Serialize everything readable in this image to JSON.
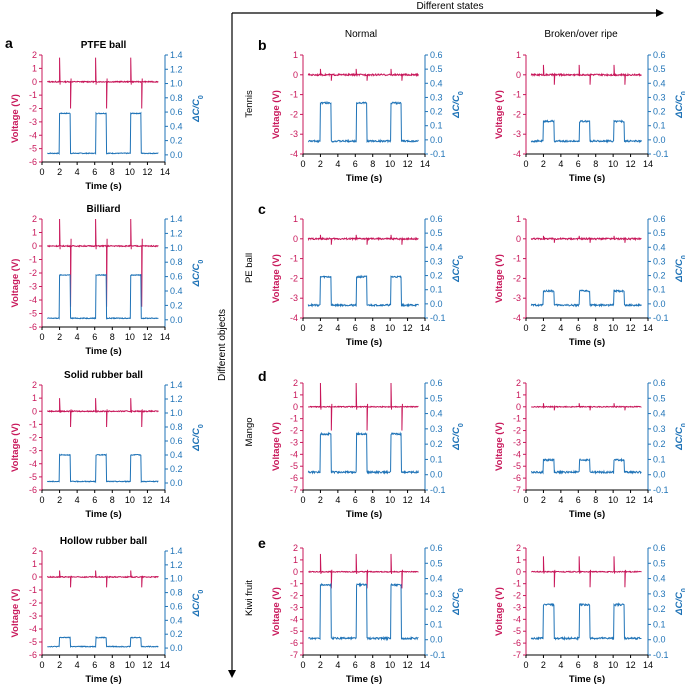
{
  "figure": {
    "header_label": "Different states",
    "side_label": "Different objects",
    "columns": [
      "Normal",
      "Broken/over ripe"
    ],
    "rows": [
      "Tennis",
      "PE ball",
      "Mango",
      "Kiwi fruit"
    ]
  },
  "colors": {
    "voltage": "#c8175a",
    "capacitance": "#1f73b7",
    "axis": "#000000"
  },
  "chart_data": [
    {
      "id": "a1",
      "panel": "a",
      "title": "PTFE ball",
      "type": "line",
      "xlabel": "Time (s)",
      "ylabel_left": "Voltage (V)",
      "ylabel_right": "ΔC/C0",
      "xlim": [
        0,
        14
      ],
      "xticks": [
        "0",
        "2",
        "4",
        "6",
        "8",
        "10",
        "12",
        "14"
      ],
      "ylim_left": [
        -6,
        2
      ],
      "yticks_left": [
        "2",
        "1",
        "0",
        "-1",
        "-2",
        "-3",
        "-4",
        "-5",
        "-6"
      ],
      "ylim_right": [
        -0.1,
        1.4
      ],
      "yticks_right": [
        "1.4",
        "1.2",
        "1.0",
        "0.8",
        "0.6",
        "0.4",
        "0.2",
        "0.0"
      ],
      "series": [
        {
          "name": "Voltage",
          "axis": "left",
          "pulses": [
            2.0,
            6.1,
            10.1
          ],
          "pos_peak": 1.8,
          "neg_peak": -2.0
        },
        {
          "name": "ΔC/C0",
          "axis": "right",
          "pulses": [
            2.0,
            6.1,
            10.1
          ],
          "width": 1.2,
          "baseline": 0.0,
          "high": 0.56
        }
      ]
    },
    {
      "id": "a2",
      "panel": "",
      "title": "Billiard",
      "type": "line",
      "xlabel": "Time (s)",
      "ylabel_left": "Voltage (V)",
      "ylabel_right": "ΔC/C0",
      "xlim": [
        0,
        14
      ],
      "xticks": [
        "0",
        "2",
        "4",
        "6",
        "8",
        "10",
        "12",
        "14"
      ],
      "ylim_left": [
        -6,
        2
      ],
      "yticks_left": [
        "2",
        "1",
        "0",
        "-1",
        "-2",
        "-3",
        "-4",
        "-5",
        "-6"
      ],
      "ylim_right": [
        -0.1,
        1.4
      ],
      "yticks_right": [
        "1.4",
        "1.2",
        "1.0",
        "0.8",
        "0.6",
        "0.4",
        "0.2",
        "0.0"
      ],
      "series": [
        {
          "name": "Voltage",
          "axis": "left",
          "pulses": [
            2.0,
            6.1,
            10.1
          ],
          "pos_peak": 2.0,
          "neg_peak": -4.5
        },
        {
          "name": "ΔC/C0",
          "axis": "right",
          "pulses": [
            2.0,
            6.1,
            10.1
          ],
          "width": 1.2,
          "baseline": 0.0,
          "high": 0.6
        }
      ]
    },
    {
      "id": "a3",
      "panel": "",
      "title": "Solid rubber ball",
      "type": "line",
      "xlabel": "Time (s)",
      "ylabel_left": "Voltage (V)",
      "ylabel_right": "ΔC/C0",
      "xlim": [
        0,
        14
      ],
      "xticks": [
        "0",
        "2",
        "4",
        "6",
        "8",
        "10",
        "12",
        "14"
      ],
      "ylim_left": [
        -6,
        2
      ],
      "yticks_left": [
        "2",
        "1",
        "0",
        "-1",
        "-2",
        "-3",
        "-4",
        "-5",
        "-6"
      ],
      "ylim_right": [
        -0.1,
        1.4
      ],
      "yticks_right": [
        "1.4",
        "1.2",
        "1.0",
        "0.8",
        "0.6",
        "0.4",
        "0.2",
        "0.0"
      ],
      "series": [
        {
          "name": "Voltage",
          "axis": "left",
          "pulses": [
            2.0,
            6.1,
            10.1
          ],
          "pos_peak": 1.0,
          "neg_peak": -1.2
        },
        {
          "name": "ΔC/C0",
          "axis": "right",
          "pulses": [
            2.0,
            6.1,
            10.1
          ],
          "width": 1.2,
          "baseline": 0.0,
          "high": 0.38
        }
      ]
    },
    {
      "id": "a4",
      "panel": "",
      "title": "Hollow rubber ball",
      "type": "line",
      "xlabel": "Time (s)",
      "ylabel_left": "Voltage (V)",
      "ylabel_right": "ΔC/C0",
      "xlim": [
        0,
        14
      ],
      "xticks": [
        "0",
        "2",
        "4",
        "6",
        "8",
        "10",
        "12",
        "14"
      ],
      "ylim_left": [
        -6,
        2
      ],
      "yticks_left": [
        "2",
        "1",
        "0",
        "-1",
        "-2",
        "-3",
        "-4",
        "-5",
        "-6"
      ],
      "ylim_right": [
        -0.1,
        1.4
      ],
      "yticks_right": [
        "1.4",
        "1.2",
        "1.0",
        "0.8",
        "0.6",
        "0.4",
        "0.2",
        "0.0"
      ],
      "series": [
        {
          "name": "Voltage",
          "axis": "left",
          "pulses": [
            2.0,
            6.1,
            10.1
          ],
          "pos_peak": 0.5,
          "neg_peak": -0.8
        },
        {
          "name": "ΔC/C0",
          "axis": "right",
          "pulses": [
            2.0,
            6.1,
            10.1
          ],
          "width": 1.2,
          "baseline": 0.0,
          "high": 0.13
        }
      ]
    },
    {
      "id": "b1",
      "panel": "b",
      "title": "",
      "type": "line",
      "xlabel": "Time (s)",
      "ylabel_left": "Voltage (V)",
      "ylabel_right": "ΔC/C0",
      "xlim": [
        0,
        14
      ],
      "xticks": [
        "0",
        "2",
        "4",
        "6",
        "8",
        "10",
        "12",
        "14"
      ],
      "ylim_left": [
        -4,
        1
      ],
      "yticks_left": [
        "1",
        "0",
        "-1",
        "-2",
        "-3",
        "-4"
      ],
      "ylim_right": [
        -0.1,
        0.6
      ],
      "yticks_right": [
        "0.6",
        "0.5",
        "0.4",
        "0.3",
        "0.2",
        "0.1",
        "0.0",
        "-0.1"
      ],
      "series": [
        {
          "name": "Voltage",
          "axis": "left",
          "pulses": [
            2.0,
            6.1,
            10.1
          ],
          "pos_peak": 0.3,
          "neg_peak": -0.3
        },
        {
          "name": "ΔC/C0",
          "axis": "right",
          "pulses": [
            2.0,
            6.1,
            10.1
          ],
          "width": 1.2,
          "baseline": 0.0,
          "high": 0.27
        }
      ]
    },
    {
      "id": "b2",
      "panel": "",
      "title": "",
      "type": "line",
      "xlabel": "Time (s)",
      "ylabel_left": "Voltage (V)",
      "ylabel_right": "ΔC/C0",
      "xlim": [
        0,
        14
      ],
      "xticks": [
        "0",
        "2",
        "4",
        "6",
        "8",
        "10",
        "12",
        "14"
      ],
      "ylim_left": [
        -4,
        1
      ],
      "yticks_left": [
        "1",
        "0",
        "-1",
        "-2",
        "-3",
        "-4"
      ],
      "ylim_right": [
        -0.1,
        0.6
      ],
      "yticks_right": [
        "0.6",
        "0.5",
        "0.4",
        "0.3",
        "0.2",
        "0.1",
        "0.0",
        "-0.1"
      ],
      "series": [
        {
          "name": "Voltage",
          "axis": "left",
          "pulses": [
            2.0,
            6.1,
            10.1
          ],
          "pos_peak": 0.5,
          "neg_peak": -0.5
        },
        {
          "name": "ΔC/C0",
          "axis": "right",
          "pulses": [
            2.0,
            6.1,
            10.1
          ],
          "width": 1.2,
          "baseline": 0.0,
          "high": 0.14
        }
      ]
    },
    {
      "id": "c1",
      "panel": "c",
      "title": "",
      "type": "line",
      "xlabel": "Time (s)",
      "ylabel_left": "Voltage (V)",
      "ylabel_right": "ΔC/C0",
      "xlim": [
        0,
        14
      ],
      "xticks": [
        "0",
        "2",
        "4",
        "6",
        "8",
        "10",
        "12",
        "14"
      ],
      "ylim_left": [
        -4,
        1
      ],
      "yticks_left": [
        "1",
        "0",
        "-1",
        "-2",
        "-3",
        "-4"
      ],
      "ylim_right": [
        -0.1,
        0.6
      ],
      "yticks_right": [
        "0.6",
        "0.5",
        "0.4",
        "0.3",
        "0.2",
        "0.1",
        "0.0",
        "-0.1"
      ],
      "series": [
        {
          "name": "Voltage",
          "axis": "left",
          "pulses": [
            2.0,
            6.1,
            10.1
          ],
          "pos_peak": 0.2,
          "neg_peak": -0.3
        },
        {
          "name": "ΔC/C0",
          "axis": "right",
          "pulses": [
            2.0,
            6.1,
            10.1
          ],
          "width": 1.2,
          "baseline": 0.0,
          "high": 0.2
        }
      ]
    },
    {
      "id": "c2",
      "panel": "",
      "title": "",
      "type": "line",
      "xlabel": "Time (s)",
      "ylabel_left": "Voltage (V)",
      "ylabel_right": "ΔC/C0",
      "xlim": [
        0,
        14
      ],
      "xticks": [
        "0",
        "2",
        "4",
        "6",
        "8",
        "10",
        "12",
        "14"
      ],
      "ylim_left": [
        -4,
        1
      ],
      "yticks_left": [
        "1",
        "0",
        "-1",
        "-2",
        "-3",
        "-4"
      ],
      "ylim_right": [
        -0.1,
        0.6
      ],
      "yticks_right": [
        "0.6",
        "0.5",
        "0.4",
        "0.3",
        "0.2",
        "0.1",
        "0.0",
        "-0.1"
      ],
      "series": [
        {
          "name": "Voltage",
          "axis": "left",
          "pulses": [
            2.0,
            6.1,
            10.1
          ],
          "pos_peak": 0.15,
          "neg_peak": -0.2
        },
        {
          "name": "ΔC/C0",
          "axis": "right",
          "pulses": [
            2.0,
            6.1,
            10.1
          ],
          "width": 1.2,
          "baseline": 0.0,
          "high": 0.1
        }
      ]
    },
    {
      "id": "d1",
      "panel": "d",
      "title": "",
      "type": "line",
      "xlabel": "Time (s)",
      "ylabel_left": "Voltage (V)",
      "ylabel_right": "ΔC/C0",
      "xlim": [
        0,
        14
      ],
      "xticks": [
        "0",
        "2",
        "4",
        "6",
        "8",
        "10",
        "12",
        "14"
      ],
      "ylim_left": [
        -7,
        2
      ],
      "yticks_left": [
        "2",
        "1",
        "0",
        "-1",
        "-2",
        "-3",
        "-4",
        "-5",
        "-6",
        "-7"
      ],
      "ylim_right": [
        -0.1,
        0.6
      ],
      "yticks_right": [
        "0.6",
        "0.5",
        "0.4",
        "0.3",
        "0.2",
        "0.1",
        "0.0",
        "-0.1"
      ],
      "series": [
        {
          "name": "Voltage",
          "axis": "left",
          "pulses": [
            2.0,
            6.1,
            10.1
          ],
          "pos_peak": 2.0,
          "neg_peak": -2.0
        },
        {
          "name": "ΔC/C0",
          "axis": "right",
          "pulses": [
            2.0,
            6.1,
            10.1
          ],
          "width": 1.2,
          "baseline": 0.0,
          "high": 0.25
        }
      ]
    },
    {
      "id": "d2",
      "panel": "",
      "title": "",
      "type": "line",
      "xlabel": "Time (s)",
      "ylabel_left": "Voltage (V)",
      "ylabel_right": "ΔC/C0",
      "xlim": [
        0,
        14
      ],
      "xticks": [
        "0",
        "2",
        "4",
        "6",
        "8",
        "10",
        "12",
        "14"
      ],
      "ylim_left": [
        -7,
        2
      ],
      "yticks_left": [
        "2",
        "1",
        "0",
        "-1",
        "-2",
        "-3",
        "-4",
        "-5",
        "-6",
        "-7"
      ],
      "ylim_right": [
        -0.1,
        0.6
      ],
      "yticks_right": [
        "0.6",
        "0.5",
        "0.4",
        "0.3",
        "0.2",
        "0.1",
        "0.0",
        "-0.1"
      ],
      "series": [
        {
          "name": "Voltage",
          "axis": "left",
          "pulses": [
            2.0,
            6.1,
            10.1
          ],
          "pos_peak": 0.3,
          "neg_peak": -0.3
        },
        {
          "name": "ΔC/C0",
          "axis": "right",
          "pulses": [
            2.0,
            6.1,
            10.1
          ],
          "width": 1.2,
          "baseline": 0.0,
          "high": 0.08
        }
      ]
    },
    {
      "id": "e1",
      "panel": "e",
      "title": "",
      "type": "line",
      "xlabel": "Time (s)",
      "ylabel_left": "Voltage (V)",
      "ylabel_right": "ΔC/C0",
      "xlim": [
        0,
        14
      ],
      "xticks": [
        "0",
        "2",
        "4",
        "6",
        "8",
        "10",
        "12",
        "14"
      ],
      "ylim_left": [
        -7,
        2
      ],
      "yticks_left": [
        "2",
        "1",
        "0",
        "-1",
        "-2",
        "-3",
        "-4",
        "-5",
        "-6",
        "-7"
      ],
      "ylim_right": [
        -0.1,
        0.6
      ],
      "yticks_right": [
        "0.6",
        "0.5",
        "0.4",
        "0.3",
        "0.2",
        "0.1",
        "0.0",
        "-0.1"
      ],
      "series": [
        {
          "name": "Voltage",
          "axis": "left",
          "pulses": [
            2.0,
            6.1,
            10.1
          ],
          "pos_peak": 1.5,
          "neg_peak": -1.4
        },
        {
          "name": "ΔC/C0",
          "axis": "right",
          "pulses": [
            2.0,
            6.1,
            10.1
          ],
          "width": 1.2,
          "baseline": 0.0,
          "high": 0.35
        }
      ]
    },
    {
      "id": "e2",
      "panel": "",
      "title": "",
      "type": "line",
      "xlabel": "Time (s)",
      "ylabel_left": "Voltage (V)",
      "ylabel_right": "ΔC/C0",
      "xlim": [
        0,
        14
      ],
      "xticks": [
        "0",
        "2",
        "4",
        "6",
        "8",
        "10",
        "12",
        "14"
      ],
      "ylim_left": [
        -7,
        2
      ],
      "yticks_left": [
        "2",
        "1",
        "0",
        "-1",
        "-2",
        "-3",
        "-4",
        "-5",
        "-6",
        "-7"
      ],
      "ylim_right": [
        -0.1,
        0.6
      ],
      "yticks_right": [
        "0.6",
        "0.5",
        "0.4",
        "0.3",
        "0.2",
        "0.1",
        "0.0",
        "-0.1"
      ],
      "series": [
        {
          "name": "Voltage",
          "axis": "left",
          "pulses": [
            2.0,
            6.1,
            10.1
          ],
          "pos_peak": 1.3,
          "neg_peak": -1.3
        },
        {
          "name": "ΔC/C0",
          "axis": "right",
          "pulses": [
            2.0,
            6.1,
            10.1
          ],
          "width": 1.2,
          "baseline": 0.0,
          "high": 0.22
        }
      ]
    }
  ]
}
